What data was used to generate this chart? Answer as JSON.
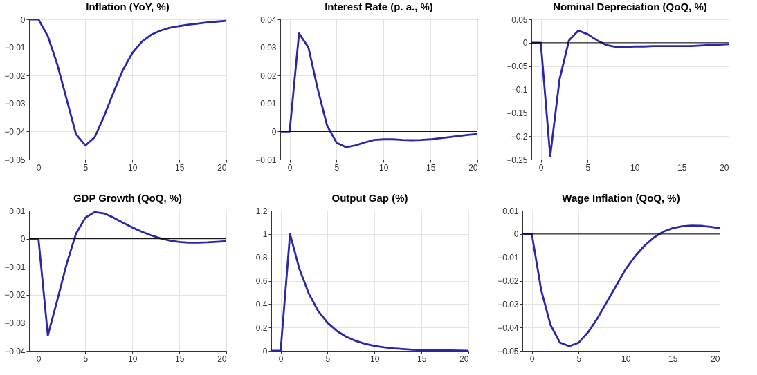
{
  "chart_data": [
    {
      "type": "line",
      "title": "Inflation (YoY, %)",
      "x": [
        -1,
        0,
        1,
        2,
        3,
        4,
        5,
        6,
        7,
        8,
        9,
        10,
        11,
        12,
        13,
        14,
        15,
        16,
        17,
        18,
        19,
        20
      ],
      "xlim": [
        -1,
        20
      ],
      "xticks": [
        0,
        5,
        10,
        15,
        20
      ],
      "ylim": [
        -0.05,
        0
      ],
      "yticks": [
        -0.05,
        -0.04,
        -0.03,
        -0.02,
        -0.01,
        0
      ],
      "grid": true,
      "series": [
        {
          "color": "#2828a8",
          "values": [
            0,
            0,
            -0.006,
            -0.016,
            -0.0285,
            -0.041,
            -0.045,
            -0.042,
            -0.0345,
            -0.026,
            -0.018,
            -0.012,
            -0.008,
            -0.0055,
            -0.004,
            -0.003,
            -0.0024,
            -0.0019,
            -0.0015,
            -0.0011,
            -0.0008,
            -0.0005
          ]
        }
      ]
    },
    {
      "type": "line",
      "title": "Interest Rate (p. a., %)",
      "x": [
        -1,
        0,
        1,
        2,
        3,
        4,
        5,
        6,
        7,
        8,
        9,
        10,
        11,
        12,
        13,
        14,
        15,
        16,
        17,
        18,
        19,
        20
      ],
      "xlim": [
        -1,
        20
      ],
      "xticks": [
        0,
        5,
        10,
        15,
        20
      ],
      "ylim": [
        -0.01,
        0.04
      ],
      "yticks": [
        -0.01,
        0,
        0.01,
        0.02,
        0.03,
        0.04
      ],
      "grid": true,
      "ref_lines": [
        {
          "axis": "y",
          "value": 0,
          "color": "#000000"
        }
      ],
      "series": [
        {
          "color": "#2828a8",
          "values": [
            0,
            0,
            0.035,
            0.03,
            0.015,
            0.002,
            -0.004,
            -0.0056,
            -0.005,
            -0.0039,
            -0.003,
            -0.0028,
            -0.0028,
            -0.003,
            -0.0031,
            -0.003,
            -0.0028,
            -0.0024,
            -0.002,
            -0.0016,
            -0.0012,
            -0.0009
          ]
        }
      ]
    },
    {
      "type": "line",
      "title": "Nominal Depreciation (QoQ, %)",
      "x": [
        -1,
        0,
        1,
        2,
        3,
        4,
        5,
        6,
        7,
        8,
        9,
        10,
        11,
        12,
        13,
        14,
        15,
        16,
        17,
        18,
        19,
        20
      ],
      "xlim": [
        -1,
        20
      ],
      "xticks": [
        0,
        5,
        10,
        15,
        20
      ],
      "ylim": [
        -0.25,
        0.05
      ],
      "yticks": [
        -0.25,
        -0.2,
        -0.15,
        -0.1,
        -0.05,
        0,
        0.05
      ],
      "grid": true,
      "ref_lines": [
        {
          "axis": "y",
          "value": 0,
          "color": "#000000"
        }
      ],
      "series": [
        {
          "color": "#2828a8",
          "values": [
            0,
            0,
            -0.243,
            -0.078,
            0.005,
            0.026,
            0.018,
            0.005,
            -0.005,
            -0.009,
            -0.009,
            -0.008,
            -0.008,
            -0.007,
            -0.007,
            -0.007,
            -0.007,
            -0.007,
            -0.006,
            -0.005,
            -0.004,
            -0.003
          ]
        }
      ]
    },
    {
      "type": "line",
      "title": "GDP Growth (QoQ, %)",
      "x": [
        -1,
        0,
        1,
        2,
        3,
        4,
        5,
        6,
        7,
        8,
        9,
        10,
        11,
        12,
        13,
        14,
        15,
        16,
        17,
        18,
        19,
        20
      ],
      "xlim": [
        -1,
        20
      ],
      "xticks": [
        0,
        5,
        10,
        15,
        20
      ],
      "ylim": [
        -0.04,
        0.01
      ],
      "yticks": [
        -0.04,
        -0.03,
        -0.02,
        -0.01,
        0,
        0.01
      ],
      "grid": true,
      "ref_lines": [
        {
          "axis": "y",
          "value": 0,
          "color": "#000000"
        }
      ],
      "series": [
        {
          "color": "#2828a8",
          "values": [
            0,
            0,
            -0.0345,
            -0.022,
            -0.009,
            0.0018,
            0.0075,
            0.0095,
            0.009,
            0.0075,
            0.0057,
            0.004,
            0.0025,
            0.0012,
            0.0001,
            -0.0007,
            -0.0012,
            -0.0014,
            -0.0014,
            -0.0013,
            -0.0011,
            -0.0009
          ]
        }
      ]
    },
    {
      "type": "line",
      "title": "Output Gap (%)",
      "x": [
        -1,
        0,
        1,
        2,
        3,
        4,
        5,
        6,
        7,
        8,
        9,
        10,
        11,
        12,
        13,
        14,
        15,
        16,
        17,
        18,
        19,
        20
      ],
      "xlim": [
        -1,
        20
      ],
      "xticks": [
        0,
        5,
        10,
        15,
        20
      ],
      "ylim": [
        0,
        1.2
      ],
      "yticks": [
        0,
        0.2,
        0.4,
        0.6,
        0.8,
        1,
        1.2
      ],
      "grid": true,
      "series": [
        {
          "color": "#2828a8",
          "values": [
            0,
            0,
            1,
            0.7,
            0.49,
            0.34,
            0.24,
            0.17,
            0.12,
            0.085,
            0.06,
            0.042,
            0.03,
            0.021,
            0.015,
            0.01,
            0.007,
            0.005,
            0.004,
            0.003,
            0.002,
            0.001
          ]
        }
      ]
    },
    {
      "type": "line",
      "title": "Wage Inflation (QoQ, %)",
      "x": [
        -1,
        0,
        1,
        2,
        3,
        4,
        5,
        6,
        7,
        8,
        9,
        10,
        11,
        12,
        13,
        14,
        15,
        16,
        17,
        18,
        19,
        20
      ],
      "xlim": [
        -1,
        20
      ],
      "xticks": [
        0,
        5,
        10,
        15,
        20
      ],
      "ylim": [
        -0.05,
        0.01
      ],
      "yticks": [
        -0.05,
        -0.04,
        -0.03,
        -0.02,
        -0.01,
        0,
        0.01
      ],
      "grid": true,
      "ref_lines": [
        {
          "axis": "y",
          "value": 0,
          "color": "#000000"
        }
      ],
      "series": [
        {
          "color": "#2828a8",
          "values": [
            0,
            0,
            -0.024,
            -0.039,
            -0.0465,
            -0.048,
            -0.0465,
            -0.042,
            -0.036,
            -0.029,
            -0.022,
            -0.015,
            -0.0095,
            -0.005,
            -0.0015,
            0.001,
            0.0025,
            0.0033,
            0.0036,
            0.0035,
            0.0031,
            0.0025
          ]
        }
      ]
    }
  ]
}
